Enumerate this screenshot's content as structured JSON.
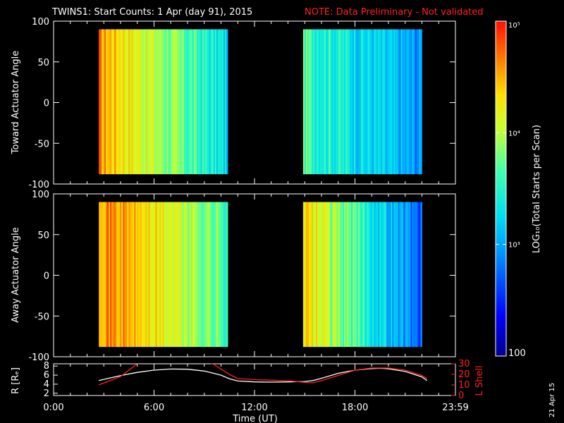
{
  "title": {
    "main": "TWINS1: Start Counts:  1 Apr (day  91), 2015",
    "note": "NOTE: Data Preliminary - Not validated"
  },
  "footer_date": "21 Apr 15",
  "colors": {
    "background": "#000000",
    "axes": "#ffffff",
    "note": "#ff2020",
    "lshell_line": "#ff2020",
    "radius_line": "#ffffff"
  },
  "chart_data": [
    {
      "type": "heatmap",
      "id": "toward",
      "ylabel": "Toward Actuator Angle",
      "ylim": [
        -100,
        100
      ],
      "yticks": [
        -100,
        -50,
        0,
        50,
        100
      ],
      "xlim": [
        0,
        24
      ],
      "data_intervals_hours": [
        [
          2.7,
          10.4
        ],
        [
          14.9,
          22.0
        ]
      ],
      "angle_range": [
        -88,
        90
      ],
      "colormap": "rainbow",
      "value_scale": "log"
    },
    {
      "type": "heatmap",
      "id": "away",
      "ylabel": "Away Actuator Angle",
      "ylim": [
        -100,
        100
      ],
      "yticks": [
        -100,
        -50,
        0,
        50,
        100
      ],
      "xlim": [
        0,
        24
      ],
      "data_intervals_hours": [
        [
          2.7,
          10.4
        ],
        [
          14.9,
          22.0
        ]
      ],
      "angle_range": [
        -88,
        90
      ],
      "colormap": "rainbow",
      "value_scale": "log"
    },
    {
      "type": "line",
      "id": "orbit",
      "xlabel": "Time (UT)",
      "xlim": [
        0,
        24
      ],
      "xticks": [
        0,
        6,
        12,
        18,
        24
      ],
      "xtick_labels": [
        "0:00",
        "6:00",
        "12:00",
        "18:00",
        "23:59"
      ],
      "ylabel_left": "R [Rₑ]",
      "ylim_left": [
        1.5,
        8.5
      ],
      "yticks_left": [
        2,
        4,
        6,
        8
      ],
      "ylabel_right": "L Shell",
      "ylim_right": [
        0,
        30
      ],
      "yticks_right": [
        0,
        10,
        20,
        30
      ],
      "series": [
        {
          "name": "R",
          "axis": "left",
          "x": [
            2.7,
            4,
            5,
            6,
            7,
            8,
            9,
            10,
            10.5,
            11,
            12,
            13,
            14,
            15,
            15.5,
            16,
            17,
            18,
            19,
            19.5,
            20,
            21,
            22,
            22.3
          ],
          "y": [
            4.8,
            5.9,
            6.6,
            7.1,
            7.35,
            7.3,
            6.9,
            6.0,
            5.2,
            4.7,
            4.5,
            4.45,
            4.5,
            4.6,
            4.8,
            5.3,
            6.4,
            7.1,
            7.45,
            7.5,
            7.4,
            6.8,
            5.6,
            4.8
          ]
        },
        {
          "name": "L Shell",
          "axis": "right",
          "x": [
            2.7,
            4,
            5,
            5.8,
            8.9,
            9.5,
            10.5,
            11,
            12,
            13,
            14,
            15,
            15.5,
            16,
            17,
            18,
            19,
            20,
            21,
            22,
            22.3
          ],
          "y": [
            10,
            18,
            30,
            32,
            32,
            30,
            20,
            16,
            15,
            14.5,
            14,
            12.5,
            12,
            14,
            19,
            24,
            26,
            26,
            24,
            19,
            16
          ]
        }
      ]
    },
    {
      "type": "colorbar",
      "id": "colorbar",
      "label": "LOG₁₀(Total Starts per Scan)",
      "range": [
        100,
        100000
      ],
      "ticks": [
        {
          "value": 100,
          "label": "100"
        },
        {
          "value": 1000,
          "label": "10³"
        },
        {
          "value": 10000,
          "label": "10⁴"
        },
        {
          "value": 100000,
          "label": "10⁵"
        }
      ]
    }
  ]
}
